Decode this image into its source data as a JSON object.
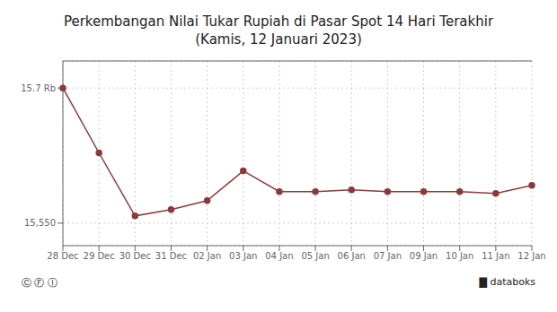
{
  "chart_data": {
    "type": "line",
    "title": "Perkembangan Nilai Tukar Rupiah di Pasar Spot 14 Hari Terakhir",
    "subtitle": "(Kamis, 12 Januari 2023)",
    "categories": [
      "28 Dec",
      "29 Dec",
      "30 Dec",
      "31 Dec",
      "02 Jan",
      "03 Jan",
      "04 Jan",
      "05 Jan",
      "06 Jan",
      "07 Jan",
      "09 Jan",
      "10 Jan",
      "11 Jan",
      "12 Jan"
    ],
    "values": [
      15700,
      15628,
      15558,
      15565,
      15575,
      15608,
      15585,
      15585,
      15587,
      15585,
      15585,
      15585,
      15583,
      15592
    ],
    "color": "#8B3A3A",
    "marker": "circle",
    "ylim": [
      15525,
      15730
    ],
    "yticks": [
      {
        "value": 15550,
        "label": "15,550"
      },
      {
        "value": 15700,
        "label": "15.7 Rb"
      }
    ],
    "grid": true,
    "annotations": [
      "Ⓒ Ⓕ Ⓘ",
      "▇ databoks"
    ]
  }
}
